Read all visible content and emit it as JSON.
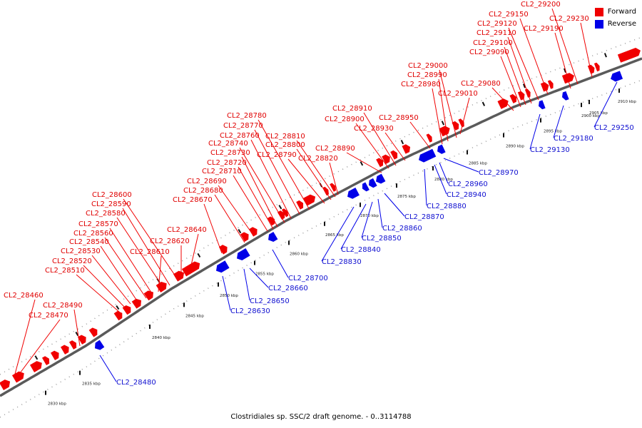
{
  "footer": "Clostridiales sp. SSC/2 draft genome. - 0..3114788",
  "legend": {
    "forward": "Forward",
    "reverse": "Reverse"
  },
  "colors": {
    "forward": "#f00000",
    "reverse": "#0000e8",
    "backbone": "#5a5a5a"
  },
  "ticks": [
    "2830 kbp",
    "2835 kbp",
    "2840 kbp",
    "2845 kbp",
    "2850 kbp",
    "2855 kbp",
    "2860 kbp",
    "2865 kbp",
    "2870 kbp",
    "2875 kbp",
    "2880 kbp",
    "2885 kbp",
    "2890 kbp",
    "2895 kbp",
    "2900 kbp",
    "2905 kbp",
    "2910 kbp"
  ],
  "forward_labels": [
    "CL2_28460",
    "CL2_28470",
    "CL2_28490",
    "CL2_28510",
    "CL2_28520",
    "CL2_28530",
    "CL2_28540",
    "CL2_28560",
    "CL2_28570",
    "CL2_28580",
    "CL2_28590",
    "CL2_28600",
    "CL2_28610",
    "CL2_28620",
    "CL2_28640",
    "CL2_28670",
    "CL2_28680",
    "CL2_28690",
    "CL2_28710",
    "CL2_28720",
    "CL2_28730",
    "CL2_28740",
    "CL2_28760",
    "CL2_28770",
    "CL2_28780",
    "CL2_28790",
    "CL2_28800",
    "CL2_28810",
    "CL2_28820",
    "CL2_28890",
    "CL2_28900",
    "CL2_28910",
    "CL2_28930",
    "CL2_28950",
    "CL2_28980",
    "CL2_28990",
    "CL2_29000",
    "CL2_29010",
    "CL2_29080",
    "CL2_29090",
    "CL2_29100",
    "CL2_29110",
    "CL2_29120",
    "CL2_29150",
    "CL2_29190",
    "CL2_29200",
    "CL2_29230"
  ],
  "reverse_labels": [
    "CL2_28480",
    "CL2_28630",
    "CL2_28650",
    "CL2_28660",
    "CL2_28700",
    "CL2_28830",
    "CL2_28840",
    "CL2_28850",
    "CL2_28860",
    "CL2_28870",
    "CL2_28880",
    "CL2_28940",
    "CL2_28960",
    "CL2_28970",
    "CL2_29130",
    "CL2_29180",
    "CL2_29250"
  ]
}
